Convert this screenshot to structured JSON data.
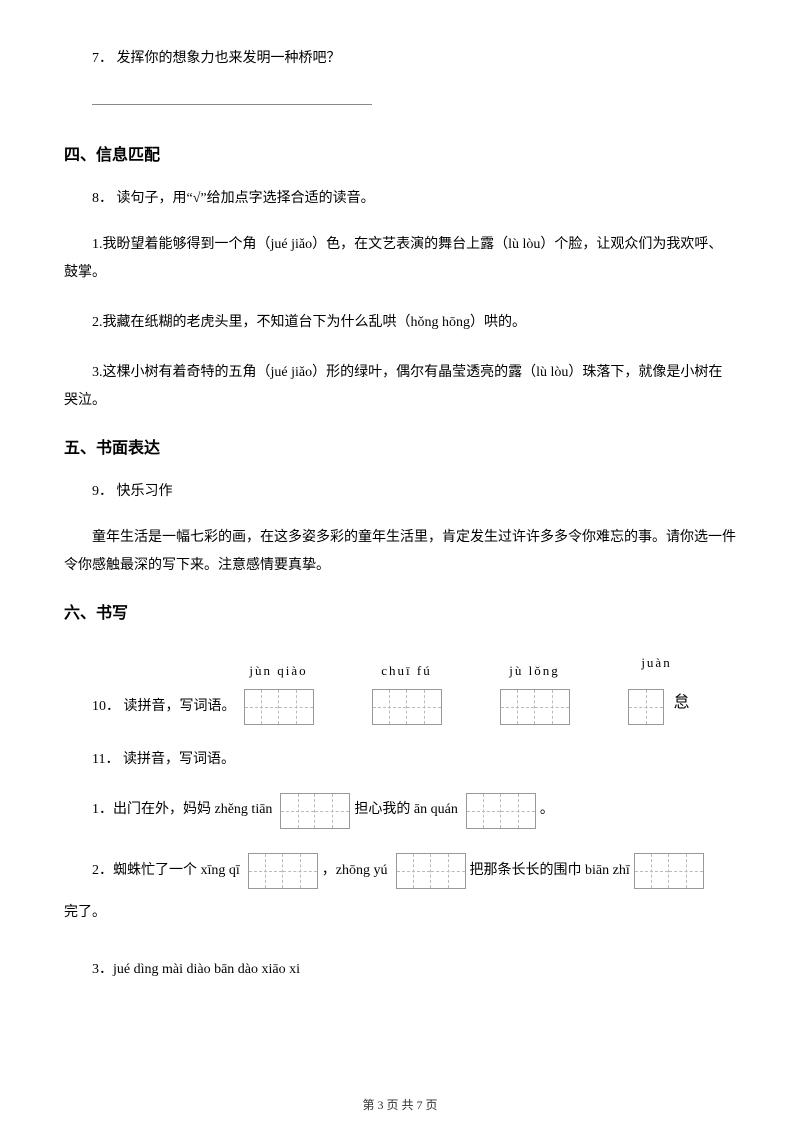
{
  "q7": {
    "number": "7．",
    "text": "发挥你的想象力也来发明一种桥吧？"
  },
  "section4": {
    "title": "四、信息匹配"
  },
  "q8": {
    "number": "8．",
    "intro": "读句子，用“√”给加点字选择合适的读音。",
    "items": [
      "1.我盼望着能够得到一个角（jué  jiǎo）色，在文艺表演的舞台上露（lù  lòu）个脸，让观众们为我欢呼、鼓掌。",
      "2.我藏在纸糊的老虎头里，不知道台下为什么乱哄（hǒng hōng）哄的。",
      "3.这棵小树有着奇特的五角（jué  jiǎo）形的绿叶，偶尔有晶莹透亮的露（lù  lòu）珠落下，就像是小树在哭泣。"
    ]
  },
  "section5": {
    "title": "五、书面表达"
  },
  "q9": {
    "number": "9．",
    "title": "快乐习作",
    "body": "童年生活是一幅七彩的画，在这多姿多彩的童年生活里，肯定发生过许许多多令你难忘的事。请你选一件令你感触最深的写下来。注意感情要真挚。"
  },
  "section6": {
    "title": "六、书写"
  },
  "q10": {
    "number": "10．",
    "title": "读拼音，写词语。",
    "blocks": [
      {
        "pinyin": "jùn  qiào",
        "cells": 2
      },
      {
        "pinyin": "chuī  fú",
        "cells": 2
      },
      {
        "pinyin": "jù  lǒng",
        "cells": 2
      },
      {
        "pinyin": "juàn",
        "cells": 1,
        "trail": "怠"
      }
    ]
  },
  "q11": {
    "number": "11．",
    "title": "读拼音，写词语。",
    "line1": {
      "prefix": "1．出门在外，妈妈 zhěng tiān",
      "mid": "担心我的 ān quán",
      "end": "。"
    },
    "line2": {
      "prefix": "2．蜘蛛忙了一个 xīng    qī",
      "mid1": "，zhōng  yú",
      "mid2": "把那条长长的围巾 biān    zhī",
      "end": "完了。"
    },
    "line3": "3．jué  dìng   mài diào   bān  dào   xiāo  xi"
  },
  "footer": {
    "text": "第 3 页 共 7 页"
  },
  "colors": {
    "text": "#000000",
    "border": "#999999",
    "dash": "#bbbbbb",
    "bg": "#ffffff"
  }
}
